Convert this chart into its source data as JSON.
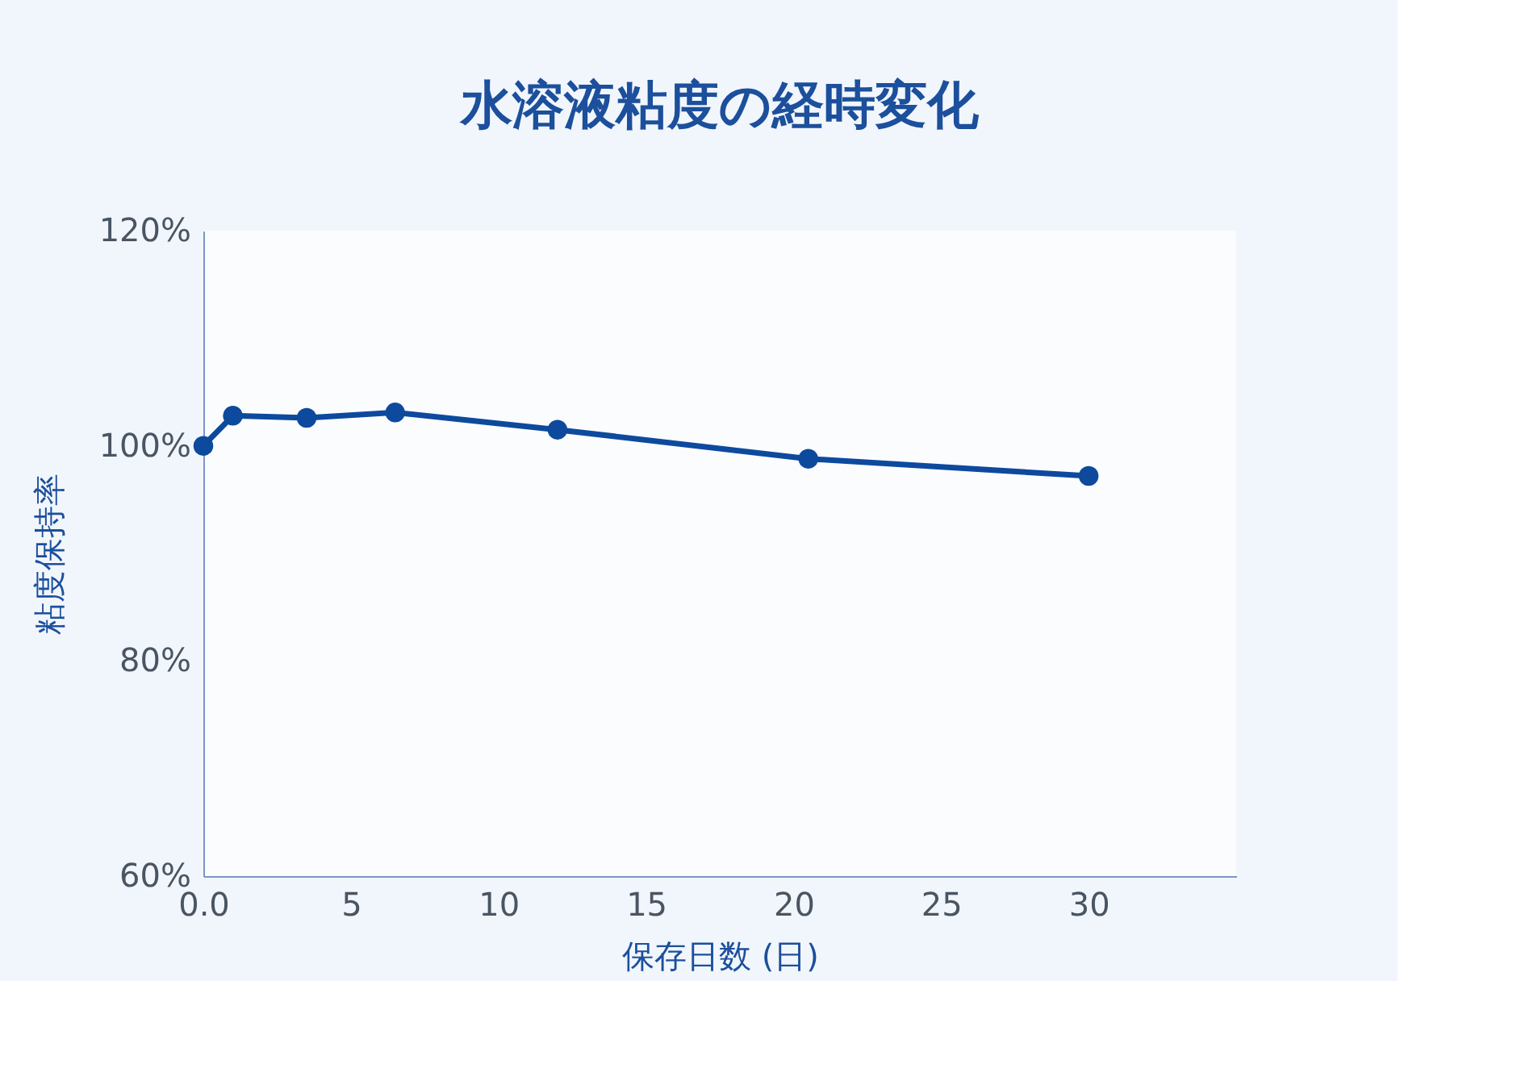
{
  "chart_data": {
    "type": "line",
    "title": "水溶液粘度の経時変化",
    "xlabel": "保存日数 (日)",
    "ylabel": "粘度保持率",
    "x": [
      0,
      1,
      3.5,
      6.5,
      12,
      20.5,
      30
    ],
    "series": [
      {
        "color": "#0d4a9e",
        "values": [
          100.0,
          102.8,
          102.6,
          103.1,
          101.5,
          98.8,
          97.2
        ]
      }
    ],
    "xlim": [
      0,
      35
    ],
    "xticks": [
      {
        "value": 0,
        "label": "0.0"
      },
      5,
      10,
      15,
      20,
      25,
      30
    ],
    "ylim": [
      60,
      120
    ],
    "yticks": [
      {
        "value": 60,
        "label": "60%"
      },
      {
        "value": 80,
        "label": "80%"
      },
      {
        "value": 100,
        "label": "100%"
      },
      {
        "value": 120,
        "label": "120%"
      }
    ],
    "grid": false,
    "marker": "circle",
    "line_style": "solid"
  }
}
